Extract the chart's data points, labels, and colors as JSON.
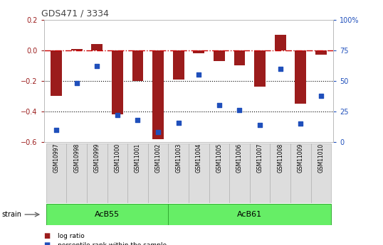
{
  "title": "GDS471 / 3334",
  "samples": [
    "GSM10997",
    "GSM10998",
    "GSM10999",
    "GSM11000",
    "GSM11001",
    "GSM11002",
    "GSM11003",
    "GSM11004",
    "GSM11005",
    "GSM11006",
    "GSM11007",
    "GSM11008",
    "GSM11009",
    "GSM11010"
  ],
  "log_ratio": [
    -0.3,
    0.01,
    0.04,
    -0.42,
    -0.2,
    -0.58,
    -0.19,
    -0.02,
    -0.07,
    -0.1,
    -0.24,
    0.1,
    -0.35,
    -0.03
  ],
  "percentile_rank": [
    10,
    48,
    62,
    22,
    18,
    8,
    16,
    55,
    30,
    26,
    14,
    60,
    15,
    38
  ],
  "ylim_left": [
    -0.6,
    0.2
  ],
  "ylim_right": [
    0,
    100
  ],
  "yticks_left": [
    -0.6,
    -0.4,
    -0.2,
    0.0,
    0.2
  ],
  "yticks_right": [
    0,
    25,
    50,
    75,
    100
  ],
  "ytick_labels_right": [
    "0",
    "25",
    "50",
    "75",
    "100%"
  ],
  "bar_color": "#9B1C1C",
  "dot_color": "#1F4FBB",
  "ref_line_color": "#CC0000",
  "dotted_line_color": "#000000",
  "groups": [
    {
      "label": "AcB55",
      "start": 0,
      "end": 5
    },
    {
      "label": "AcB61",
      "start": 6,
      "end": 13
    }
  ],
  "group_color": "#66EE66",
  "strain_label": "strain",
  "legend_items": [
    {
      "label": "log ratio",
      "color": "#9B1C1C"
    },
    {
      "label": "percentile rank within the sample",
      "color": "#1F4FBB"
    }
  ],
  "plot_bg_color": "#FFFFFF"
}
